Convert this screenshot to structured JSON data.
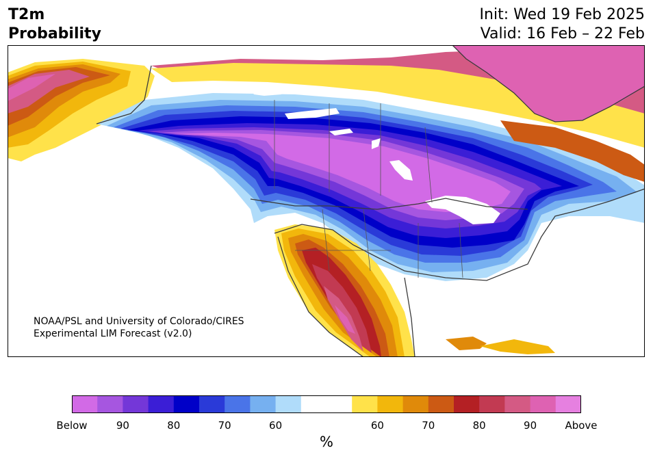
{
  "header": {
    "title_line1": "T2m",
    "title_line2": "Probability",
    "init": "Init: Wed 19 Feb 2025",
    "valid": "Valid: 16 Feb – 22 Feb"
  },
  "credit": {
    "line1": "NOAA/PSL and University of Colorado/CIRES",
    "line2": "Experimental LIM Forecast (v2.0)"
  },
  "colorbar": {
    "colors": [
      "#d26ae6",
      "#a656e0",
      "#7437d8",
      "#3b1ed6",
      "#0000c8",
      "#2a3ad8",
      "#4a74e8",
      "#76b0f0",
      "#b0dcfa",
      "#ffffff",
      "#ffffff",
      "#ffe24a",
      "#f2b70c",
      "#e08a0a",
      "#cc5a14",
      "#b42024",
      "#c23a52",
      "#d45a84",
      "#de62b2",
      "#e680e0"
    ],
    "tick_labels": [
      "Below",
      "90",
      "80",
      "70",
      "60",
      "60",
      "70",
      "80",
      "90",
      "Above"
    ],
    "unit": "%"
  },
  "map_colors": {
    "ocean": "#ffffff",
    "land_neutral": "#ffffff",
    "border": "#3a3a3a"
  }
}
